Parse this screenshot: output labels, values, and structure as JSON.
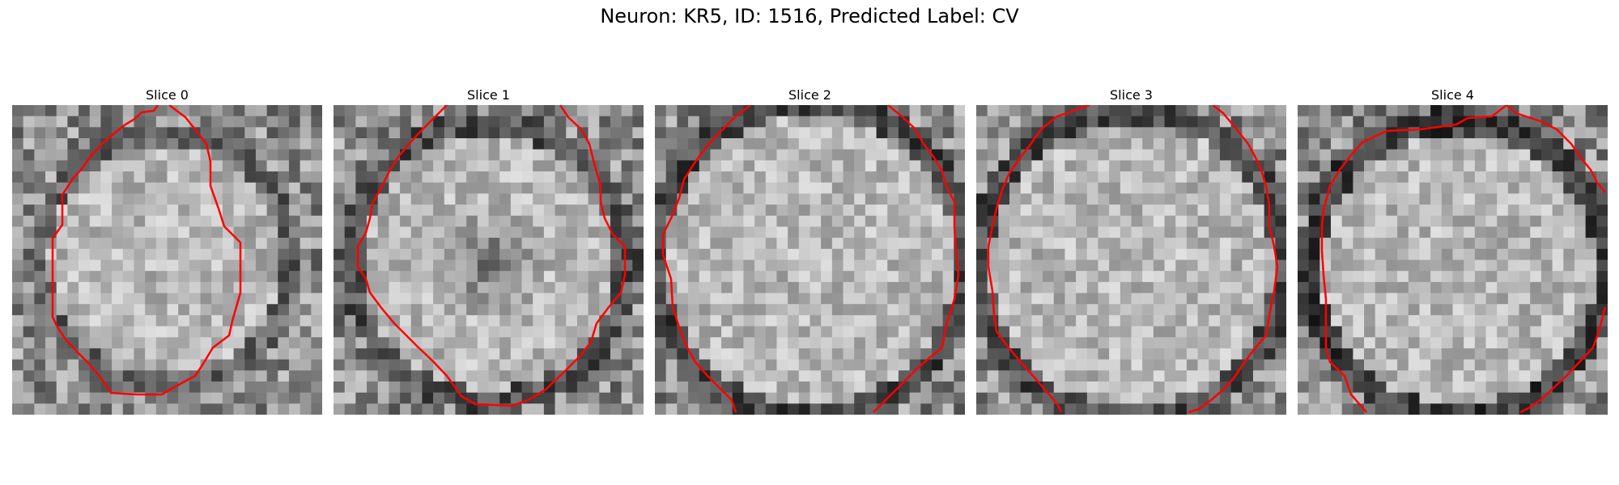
{
  "figure": {
    "title": "Neuron: KR5, ID: 1516, Predicted Label: CV"
  },
  "panels": [
    {
      "title": "Slice 0"
    },
    {
      "title": "Slice 1"
    },
    {
      "title": "Slice 2"
    },
    {
      "title": "Slice 3"
    },
    {
      "title": "Slice 4"
    }
  ],
  "colors": {
    "contour": "#ff0000",
    "background": "#ffffff"
  }
}
